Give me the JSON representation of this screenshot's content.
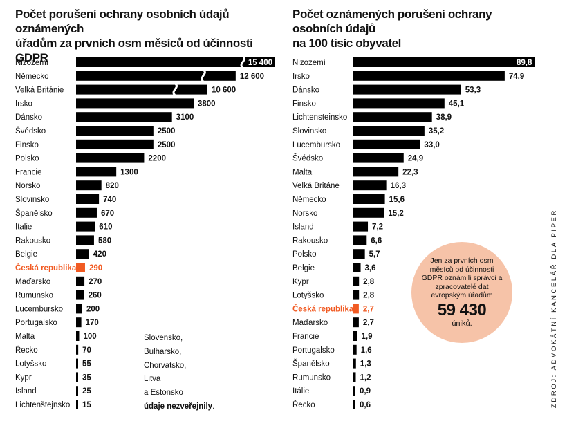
{
  "colors": {
    "bar": "#000000",
    "highlight": "#f15a22",
    "bubble": "#f6c3a8"
  },
  "highlight_label": "Česká republika",
  "chart_data": [
    {
      "type": "bar",
      "orientation": "horizontal",
      "title": "Počet porušení ochrany osobních údajů oznámených\núřadům za prvních osm měsíců od účinnosti GDPR",
      "categories": [
        "Nizozemí",
        "Německo",
        "Velká Británie",
        "Irsko",
        "Dánsko",
        "Švédsko",
        "Finsko",
        "Polsko",
        "Francie",
        "Norsko",
        "Slovinsko",
        "Španělsko",
        "Italie",
        "Rakousko",
        "Belgie",
        "Česká republika",
        "Maďarsko",
        "Rumunsko",
        "Lucembursko",
        "Portugalsko",
        "Malta",
        "Řecko",
        "Lotyšsko",
        "Kypr",
        "Island",
        "Lichtenštejnsko"
      ],
      "values": [
        15400,
        12600,
        10600,
        3800,
        3100,
        2500,
        2500,
        2200,
        1300,
        820,
        740,
        670,
        610,
        580,
        420,
        290,
        270,
        260,
        200,
        170,
        100,
        70,
        55,
        35,
        25,
        15
      ],
      "value_labels": [
        "15 400",
        "12 600",
        "10 600",
        "3800",
        "3100",
        "2500",
        "2500",
        "2200",
        "1300",
        "820",
        "740",
        "670",
        "610",
        "580",
        "420",
        "290",
        "270",
        "260",
        "200",
        "170",
        "100",
        "70",
        "55",
        "35",
        "25",
        "15"
      ],
      "axis_break": {
        "categories": [
          "Nizozemí",
          "Německo",
          "Velká Británie"
        ]
      },
      "xlim": [
        0,
        4500
      ]
    },
    {
      "type": "bar",
      "orientation": "horizontal",
      "title": "Počet oznámených porušení ochrany osobních údajů\nna 100 tisíc obyvatel",
      "categories": [
        "Nizozemí",
        "Irsko",
        "Dánsko",
        "Finsko",
        "Lichtensteinsko",
        "Slovinsko",
        "Lucembursko",
        "Švédsko",
        "Malta",
        "Velká Británe",
        "Německo",
        "Norsko",
        "Island",
        "Rakousko",
        "Polsko",
        "Belgie",
        "Kypr",
        "Lotyšsko",
        "Česká republika",
        "Maďarsko",
        "Francie",
        "Portugalsko",
        "Španělsko",
        "Rumunsko",
        "Itálie",
        "Řecko"
      ],
      "values": [
        89.8,
        74.9,
        53.3,
        45.1,
        38.9,
        35.2,
        33.0,
        24.9,
        22.3,
        16.3,
        15.6,
        15.2,
        7.2,
        6.6,
        5.7,
        3.6,
        2.8,
        2.8,
        2.7,
        2.7,
        1.9,
        1.6,
        1.3,
        1.2,
        0.9,
        0.6
      ],
      "value_labels": [
        "89,8",
        "74,9",
        "53,3",
        "45,1",
        "38,9",
        "35,2",
        "33,0",
        "24,9",
        "22,3",
        "16,3",
        "15,6",
        "15,2",
        "7,2",
        "6,6",
        "5,7",
        "3,6",
        "2,8",
        "2,8",
        "2,7",
        "2,7",
        "1,9",
        "1,6",
        "1,3",
        "1,2",
        "0,9",
        "0,6"
      ],
      "xlim": [
        0,
        90
      ]
    }
  ],
  "note": {
    "lines": [
      "Slovensko,",
      "Bulharsko,",
      "Chorvatsko,",
      "Litva",
      "a Estonsko"
    ],
    "bold": "údaje nezveřejnily",
    "end": "."
  },
  "bubble": {
    "text": "Jen za prvních osm měsíců od účinnosti GDPR oznámili správci a zpracovatelé dat evropským úřadům",
    "number": "59 430",
    "unit": "úniků."
  },
  "source": "ZDROJ: ADVOKÁTNÍ KANCELÁŘ DLA PIPER"
}
